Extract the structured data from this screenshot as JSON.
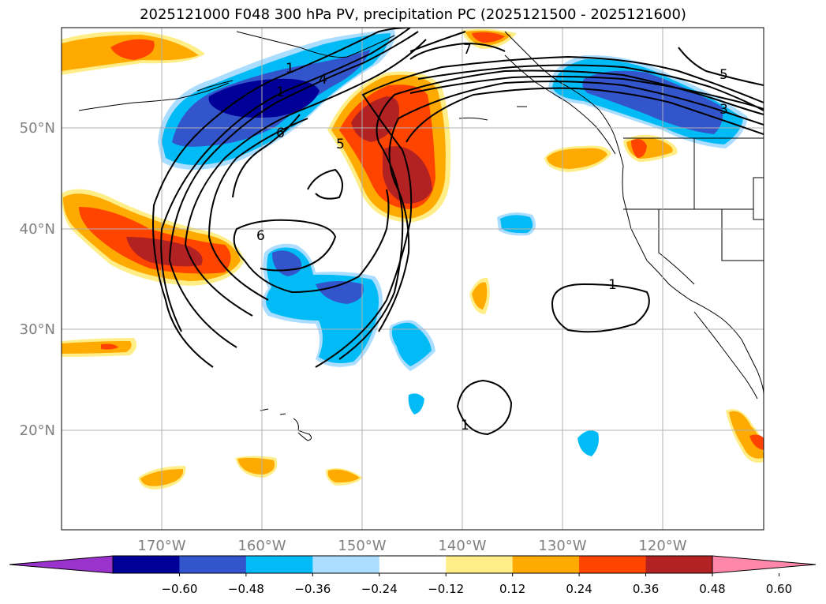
{
  "title": "2025121000 F048 300 hPa PV, precipitation PC (2025121500 - 2025121600)",
  "lat_labels": [
    "50°N",
    "40°N",
    "30°N",
    "20°N"
  ],
  "lon_labels": [
    "170°W",
    "160°W",
    "150°W",
    "140°W",
    "130°W",
    "120°W"
  ],
  "colorbar": {
    "ticks": [
      "−0.60",
      "−0.48",
      "−0.36",
      "−0.24",
      "−0.12",
      "0.12",
      "0.24",
      "0.36",
      "0.48",
      "0.60"
    ],
    "colors": [
      "#9933cc",
      "#000099",
      "#3355cc",
      "#00bbf5",
      "#aaddff",
      "#ffffff",
      "#ffee88",
      "#ffaa00",
      "#ff4400",
      "#b22222",
      "#ff88aa"
    ]
  },
  "contour_labels": [
    "1",
    "4",
    "6",
    "5",
    "6",
    "1",
    "7",
    "5",
    "3",
    "1",
    "1"
  ],
  "colors": {
    "land_outline": "#000000",
    "grid": "#b0b0b0",
    "contour": "#000000"
  }
}
